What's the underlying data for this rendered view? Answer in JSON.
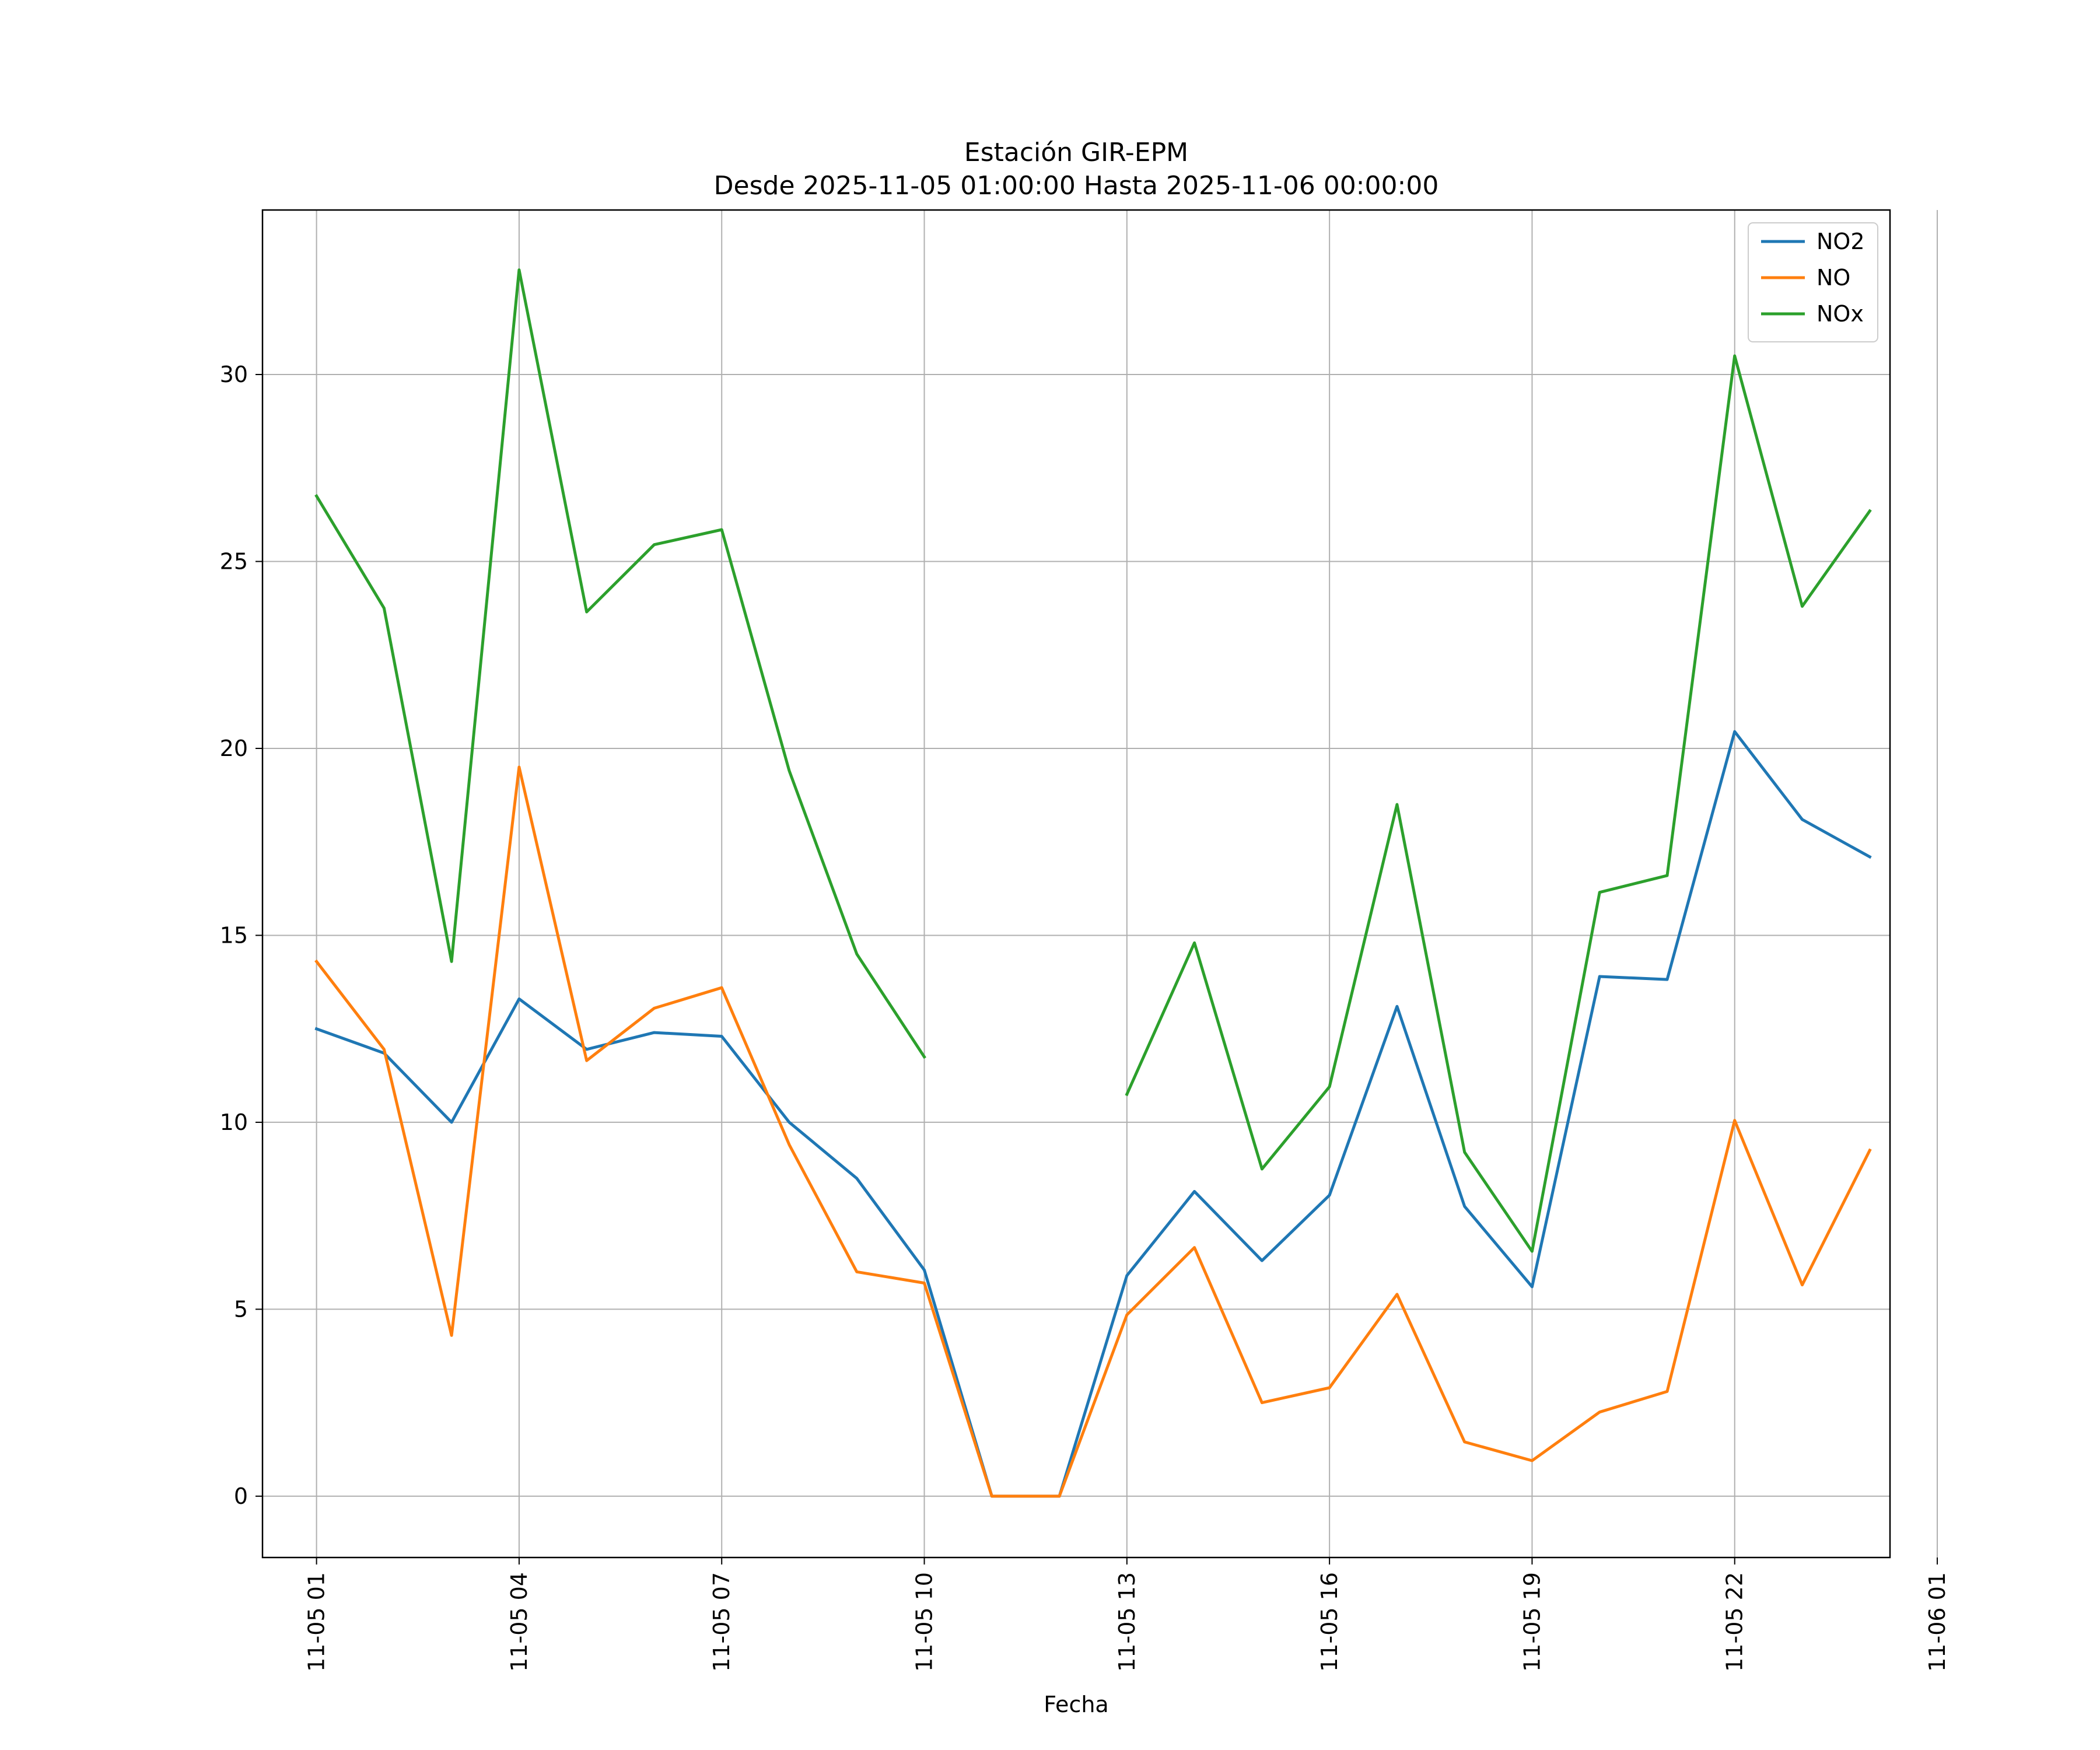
{
  "chart_data": {
    "type": "line",
    "title": "Estación GIR-EPM",
    "subtitle": "Desde 2025-11-05 01:00:00 Hasta 2025-11-06 00:00:00",
    "xlabel": "Fecha",
    "ylabel": "",
    "x_hours": [
      0,
      1,
      2,
      3,
      4,
      5,
      6,
      7,
      8,
      9,
      10,
      11,
      12,
      13,
      14,
      15,
      16,
      17,
      18,
      19,
      20,
      21,
      22,
      23
    ],
    "x_tick_hours": [
      0,
      3,
      6,
      9,
      12,
      15,
      18,
      21,
      24
    ],
    "x_tick_labels": [
      "11-05 01",
      "11-05 04",
      "11-05 07",
      "11-05 10",
      "11-05 13",
      "11-05 16",
      "11-05 19",
      "11-05 22",
      "11-06 01"
    ],
    "xlim": [
      -0.8,
      23.3
    ],
    "y_ticks": [
      0,
      5,
      10,
      15,
      20,
      25,
      30
    ],
    "y_tick_labels": [
      "0",
      "5",
      "10",
      "15",
      "20",
      "25",
      "30"
    ],
    "ylim": [
      -1.64,
      34.4
    ],
    "grid": true,
    "legend_position": "top-right",
    "series": [
      {
        "name": "NO2",
        "color": "#1f77b4",
        "values": [
          12.5,
          11.85,
          10.0,
          13.3,
          11.95,
          12.4,
          12.3,
          10.0,
          8.5,
          6.05,
          0.0,
          0.0,
          5.9,
          8.15,
          6.3,
          8.05,
          13.1,
          7.75,
          5.6,
          13.9,
          13.82,
          20.45,
          18.1,
          17.1
        ]
      },
      {
        "name": "NO",
        "color": "#ff7f0e",
        "values": [
          14.3,
          11.95,
          4.3,
          19.5,
          11.65,
          13.05,
          13.6,
          9.4,
          6.0,
          5.7,
          0.0,
          0.0,
          4.85,
          6.65,
          2.5,
          2.9,
          5.4,
          1.45,
          0.95,
          2.25,
          2.8,
          10.05,
          5.65,
          9.25
        ]
      },
      {
        "name": "NOx",
        "color": "#2ca02c",
        "values": [
          26.75,
          23.75,
          14.3,
          32.8,
          23.65,
          25.45,
          25.85,
          19.4,
          14.5,
          11.75,
          null,
          null,
          10.75,
          14.8,
          8.75,
          10.95,
          18.5,
          9.2,
          6.55,
          16.15,
          16.6,
          30.5,
          23.8,
          26.35
        ]
      }
    ]
  }
}
